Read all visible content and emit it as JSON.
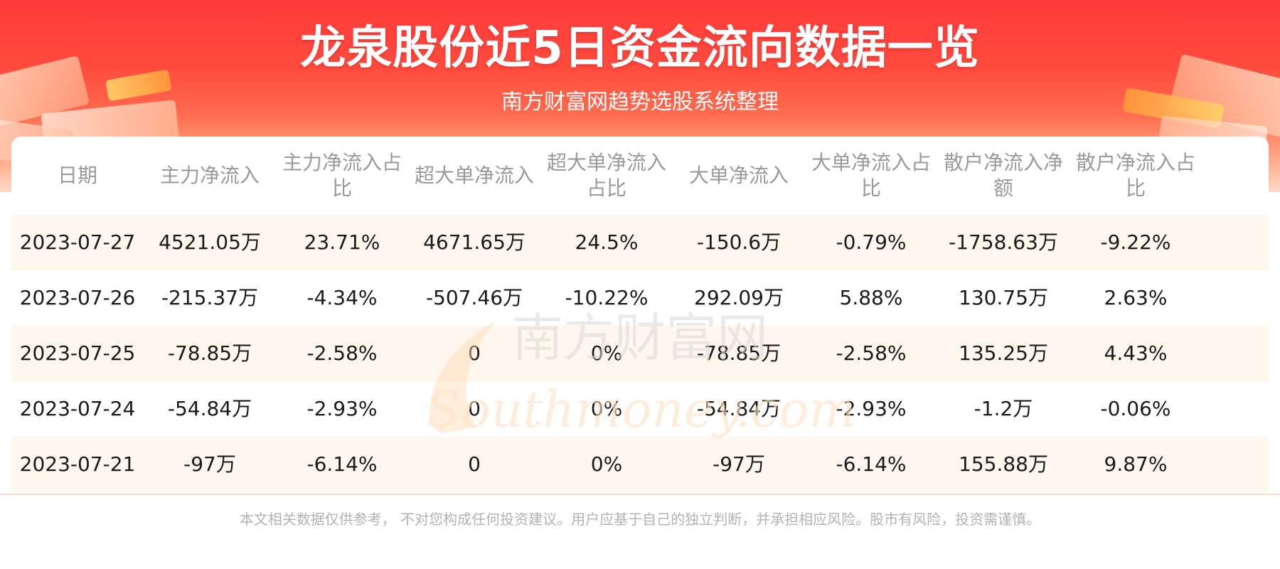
{
  "header": {
    "title": "龙泉股份近5日资金流向数据一览",
    "subtitle": "南方财富网趋势选股系统整理"
  },
  "watermark": {
    "chinese": "南方财富网",
    "latin": "Southmoney.com"
  },
  "table": {
    "columns": [
      "日期",
      "主力净流入",
      "主力净流入占比",
      "超大单净流入",
      "超大单净流入占比",
      "大单净流入",
      "大单净流入占比",
      "散户净流入净额",
      "散户净流入占比"
    ],
    "rows": [
      [
        "2023-07-27",
        "4521.05万",
        "23.71%",
        "4671.65万",
        "24.5%",
        "-150.6万",
        "-0.79%",
        "-1758.63万",
        "-9.22%"
      ],
      [
        "2023-07-26",
        "-215.37万",
        "-4.34%",
        "-507.46万",
        "-10.22%",
        "292.09万",
        "5.88%",
        "130.75万",
        "2.63%"
      ],
      [
        "2023-07-25",
        "-78.85万",
        "-2.58%",
        "0",
        "0%",
        "-78.85万",
        "-2.58%",
        "135.25万",
        "4.43%"
      ],
      [
        "2023-07-24",
        "-54.84万",
        "-2.93%",
        "0",
        "0%",
        "-54.84万",
        "-2.93%",
        "-1.2万",
        "-0.06%"
      ],
      [
        "2023-07-21",
        "-97万",
        "-6.14%",
        "0",
        "0%",
        "-97万",
        "-6.14%",
        "155.88万",
        "9.87%"
      ]
    ]
  },
  "footer": {
    "disclaimer": "本文相关数据仅供参考， 不对您构成任何投资建议。用户应基于自己的独立判断，并承担相应风险。股市有风险，投资需谨慎。"
  },
  "colors": {
    "banner_red": "#ff3a3a",
    "row_stripe": "#fff6ee",
    "header_text": "#9a9a9a"
  }
}
